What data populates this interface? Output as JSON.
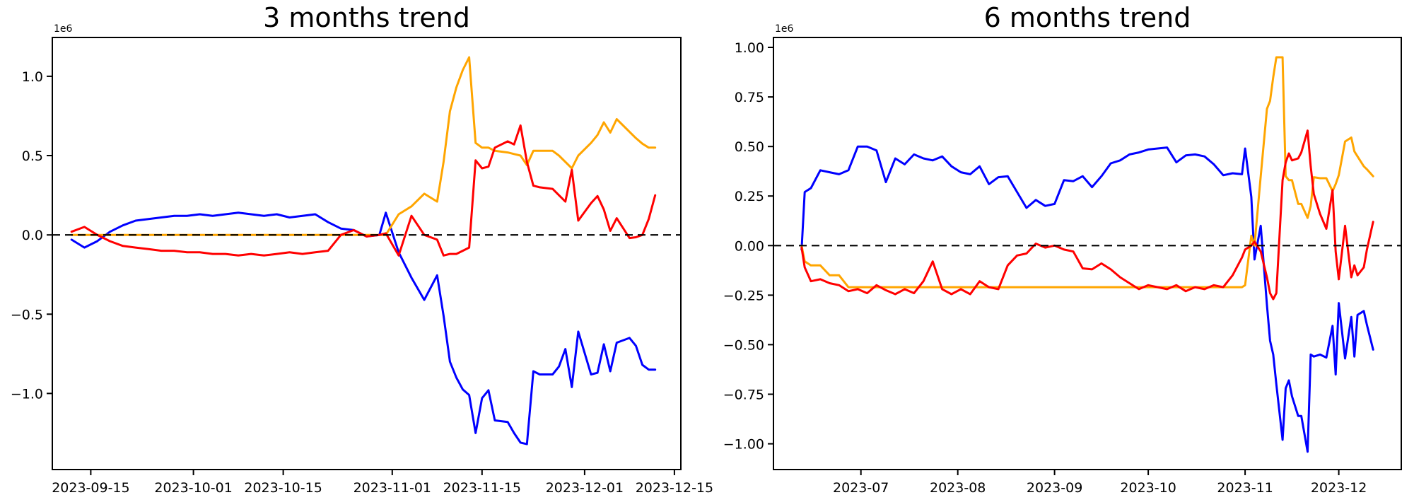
{
  "figure": {
    "background": "#ffffff",
    "axis_color": "#000000"
  },
  "chart_data": [
    {
      "type": "line",
      "title": "3 months trend",
      "offset_label": "1e6",
      "legend": "none",
      "grid": false,
      "zero_line": {
        "value": 0,
        "style": "dashed",
        "color": "#000000"
      },
      "xlim": [
        "2023-09-09",
        "2023-12-16"
      ],
      "ylim": [
        -1.48,
        1.245
      ],
      "y_unit": 1000000,
      "yticks": {
        "values": [
          1.0,
          0.5,
          0.0,
          -0.5,
          -1.0
        ],
        "labels": [
          "1.0",
          "0.5",
          "0.0",
          "−0.5",
          "−1.0"
        ]
      },
      "xticks": {
        "dates": [
          "2023-09-15",
          "2023-10-01",
          "2023-10-15",
          "2023-11-01",
          "2023-11-15",
          "2023-12-01",
          "2023-12-15"
        ],
        "labels": [
          "2023-09-15",
          "2023-10-01",
          "2023-10-15",
          "2023-11-01",
          "2023-11-15",
          "2023-12-01",
          "2023-12-15"
        ]
      },
      "x_dates": [
        "2023-09-12",
        "2023-09-14",
        "2023-09-16",
        "2023-09-18",
        "2023-09-20",
        "2023-09-22",
        "2023-09-24",
        "2023-09-26",
        "2023-09-28",
        "2023-09-30",
        "2023-10-02",
        "2023-10-04",
        "2023-10-06",
        "2023-10-08",
        "2023-10-10",
        "2023-10-12",
        "2023-10-14",
        "2023-10-16",
        "2023-10-18",
        "2023-10-20",
        "2023-10-22",
        "2023-10-24",
        "2023-10-26",
        "2023-10-28",
        "2023-10-30",
        "2023-10-31",
        "2023-11-02",
        "2023-11-04",
        "2023-11-06",
        "2023-11-08",
        "2023-11-09",
        "2023-11-10",
        "2023-11-11",
        "2023-11-12",
        "2023-11-13",
        "2023-11-14",
        "2023-11-15",
        "2023-11-16",
        "2023-11-17",
        "2023-11-19",
        "2023-11-20",
        "2023-11-21",
        "2023-11-22",
        "2023-11-23",
        "2023-11-24",
        "2023-11-26",
        "2023-11-27",
        "2023-11-28",
        "2023-11-29",
        "2023-11-30",
        "2023-12-02",
        "2023-12-03",
        "2023-12-04",
        "2023-12-05",
        "2023-12-06",
        "2023-12-08",
        "2023-12-09",
        "2023-12-10",
        "2023-12-11",
        "2023-12-12"
      ],
      "series": [
        {
          "name": "blue",
          "color": "#0000ff",
          "values": [
            -0.03,
            -0.08,
            -0.04,
            0.02,
            0.06,
            0.09,
            0.1,
            0.11,
            0.12,
            0.12,
            0.13,
            0.12,
            0.13,
            0.14,
            0.13,
            0.12,
            0.13,
            0.11,
            0.12,
            0.13,
            0.08,
            0.04,
            0.03,
            -0.01,
            0.0,
            0.14,
            -0.11,
            -0.27,
            -0.41,
            -0.255,
            -0.51,
            -0.8,
            -0.9,
            -0.975,
            -1.01,
            -1.25,
            -1.03,
            -0.98,
            -1.17,
            -1.18,
            -1.25,
            -1.31,
            -1.32,
            -0.86,
            -0.88,
            -0.88,
            -0.83,
            -0.72,
            -0.96,
            -0.61,
            -0.88,
            -0.87,
            -0.69,
            -0.86,
            -0.68,
            -0.65,
            -0.7,
            -0.82,
            -0.85,
            -0.85
          ]
        },
        {
          "name": "red",
          "color": "#ff0000",
          "values": [
            0.02,
            0.05,
            0.0,
            -0.04,
            -0.07,
            -0.08,
            -0.09,
            -0.1,
            -0.1,
            -0.11,
            -0.11,
            -0.12,
            -0.12,
            -0.13,
            -0.12,
            -0.13,
            -0.12,
            -0.11,
            -0.12,
            -0.11,
            -0.1,
            0.0,
            0.03,
            -0.01,
            0.0,
            0.01,
            -0.13,
            0.12,
            0.0,
            -0.03,
            -0.13,
            -0.12,
            -0.12,
            -0.1,
            -0.08,
            0.47,
            0.42,
            0.43,
            0.55,
            0.59,
            0.57,
            0.69,
            0.46,
            0.31,
            0.3,
            0.29,
            0.25,
            0.21,
            0.41,
            0.09,
            0.2,
            0.245,
            0.16,
            0.025,
            0.105,
            -0.02,
            -0.015,
            0.0,
            0.1,
            0.25
          ]
        },
        {
          "name": "orange",
          "color": "#ffa500",
          "values": [
            0.0,
            0.0,
            0.0,
            0.0,
            0.0,
            0.0,
            0.0,
            0.0,
            0.0,
            0.0,
            0.0,
            0.0,
            0.0,
            0.0,
            0.0,
            0.0,
            0.0,
            0.0,
            0.0,
            0.0,
            0.0,
            0.0,
            0.0,
            0.0,
            0.0,
            0.0,
            0.13,
            0.18,
            0.26,
            0.21,
            0.46,
            0.78,
            0.93,
            1.04,
            1.12,
            0.58,
            0.55,
            0.55,
            0.53,
            0.52,
            0.51,
            0.5,
            0.44,
            0.53,
            0.53,
            0.53,
            0.5,
            0.46,
            0.42,
            0.5,
            0.58,
            0.63,
            0.71,
            0.645,
            0.73,
            0.65,
            0.61,
            0.575,
            0.55,
            0.55
          ]
        }
      ]
    },
    {
      "type": "line",
      "title": "6 months trend",
      "offset_label": "1e6",
      "legend": "none",
      "grid": false,
      "zero_line": {
        "value": 0,
        "style": "dashed",
        "color": "#000000"
      },
      "xlim": [
        "2023-06-03",
        "2023-12-21"
      ],
      "ylim": [
        -1.13,
        1.05
      ],
      "y_unit": 1000000,
      "yticks": {
        "values": [
          1.0,
          0.75,
          0.5,
          0.25,
          0.0,
          -0.25,
          -0.5,
          -0.75,
          -1.0
        ],
        "labels": [
          "1.00",
          "0.75",
          "0.50",
          "0.25",
          "0.00",
          "−0.25",
          "−0.50",
          "−0.75",
          "−1.00"
        ]
      },
      "xticks": {
        "dates": [
          "2023-07-01",
          "2023-08-01",
          "2023-09-01",
          "2023-10-01",
          "2023-11-01",
          "2023-12-01"
        ],
        "labels": [
          "2023-07",
          "2023-08",
          "2023-09",
          "2023-10",
          "2023-11",
          "2023-12"
        ]
      },
      "x_dates": [
        "2023-06-12",
        "2023-06-13",
        "2023-06-15",
        "2023-06-18",
        "2023-06-21",
        "2023-06-24",
        "2023-06-27",
        "2023-06-30",
        "2023-07-03",
        "2023-07-06",
        "2023-07-09",
        "2023-07-12",
        "2023-07-15",
        "2023-07-18",
        "2023-07-21",
        "2023-07-24",
        "2023-07-27",
        "2023-07-30",
        "2023-08-02",
        "2023-08-05",
        "2023-08-08",
        "2023-08-11",
        "2023-08-14",
        "2023-08-17",
        "2023-08-20",
        "2023-08-23",
        "2023-08-26",
        "2023-08-29",
        "2023-09-01",
        "2023-09-04",
        "2023-09-07",
        "2023-09-10",
        "2023-09-13",
        "2023-09-16",
        "2023-09-19",
        "2023-09-22",
        "2023-09-25",
        "2023-09-28",
        "2023-10-01",
        "2023-10-04",
        "2023-10-07",
        "2023-10-10",
        "2023-10-13",
        "2023-10-16",
        "2023-10-19",
        "2023-10-22",
        "2023-10-25",
        "2023-10-28",
        "2023-10-31",
        "2023-11-01",
        "2023-11-03",
        "2023-11-04",
        "2023-11-06",
        "2023-11-08",
        "2023-11-09",
        "2023-11-10",
        "2023-11-11",
        "2023-11-13",
        "2023-11-14",
        "2023-11-15",
        "2023-11-16",
        "2023-11-18",
        "2023-11-19",
        "2023-11-21",
        "2023-11-22",
        "2023-11-23",
        "2023-11-25",
        "2023-11-27",
        "2023-11-29",
        "2023-11-30",
        "2023-12-01",
        "2023-12-03",
        "2023-12-05",
        "2023-12-06",
        "2023-12-07",
        "2023-12-09",
        "2023-12-10",
        "2023-12-12"
      ],
      "series": [
        {
          "name": "blue",
          "color": "#0000ff",
          "values": [
            -0.02,
            0.27,
            0.29,
            0.38,
            0.37,
            0.36,
            0.38,
            0.5,
            0.5,
            0.48,
            0.32,
            0.44,
            0.41,
            0.46,
            0.44,
            0.43,
            0.45,
            0.4,
            0.37,
            0.36,
            0.4,
            0.31,
            0.345,
            0.35,
            0.27,
            0.19,
            0.23,
            0.2,
            0.21,
            0.33,
            0.325,
            0.35,
            0.295,
            0.35,
            0.415,
            0.43,
            0.46,
            0.47,
            0.485,
            0.49,
            0.495,
            0.42,
            0.455,
            0.46,
            0.45,
            0.41,
            0.355,
            0.365,
            0.36,
            0.49,
            0.245,
            -0.07,
            0.1,
            -0.3,
            -0.48,
            -0.55,
            -0.7,
            -0.98,
            -0.72,
            -0.68,
            -0.76,
            -0.86,
            -0.86,
            -1.04,
            -0.55,
            -0.56,
            -0.55,
            -0.565,
            -0.405,
            -0.65,
            -0.29,
            -0.57,
            -0.36,
            -0.56,
            -0.35,
            -0.33,
            -0.4,
            -0.525
          ]
        },
        {
          "name": "red",
          "color": "#ff0000",
          "values": [
            -0.01,
            -0.11,
            -0.18,
            -0.17,
            -0.19,
            -0.2,
            -0.23,
            -0.22,
            -0.24,
            -0.2,
            -0.225,
            -0.245,
            -0.22,
            -0.24,
            -0.18,
            -0.08,
            -0.22,
            -0.245,
            -0.22,
            -0.245,
            -0.18,
            -0.21,
            -0.22,
            -0.1,
            -0.05,
            -0.04,
            0.01,
            -0.01,
            0.0,
            -0.02,
            -0.03,
            -0.115,
            -0.12,
            -0.09,
            -0.12,
            -0.16,
            -0.19,
            -0.22,
            -0.2,
            -0.21,
            -0.22,
            -0.2,
            -0.23,
            -0.21,
            -0.22,
            -0.2,
            -0.21,
            -0.15,
            -0.06,
            -0.02,
            0.0,
            0.02,
            -0.03,
            -0.16,
            -0.24,
            -0.27,
            -0.24,
            0.33,
            0.42,
            0.465,
            0.43,
            0.44,
            0.47,
            0.58,
            0.4,
            0.26,
            0.16,
            0.085,
            0.28,
            -0.03,
            -0.17,
            0.1,
            -0.16,
            -0.1,
            -0.15,
            -0.11,
            -0.02,
            0.12
          ]
        },
        {
          "name": "orange",
          "color": "#ffa500",
          "values": [
            0.0,
            -0.08,
            -0.1,
            -0.1,
            -0.15,
            -0.15,
            -0.21,
            -0.21,
            -0.21,
            -0.21,
            -0.21,
            -0.21,
            -0.21,
            -0.21,
            -0.21,
            -0.21,
            -0.21,
            -0.21,
            -0.21,
            -0.21,
            -0.21,
            -0.21,
            -0.21,
            -0.21,
            -0.21,
            -0.21,
            -0.21,
            -0.21,
            -0.21,
            -0.21,
            -0.21,
            -0.21,
            -0.21,
            -0.21,
            -0.21,
            -0.21,
            -0.21,
            -0.21,
            -0.21,
            -0.21,
            -0.21,
            -0.21,
            -0.21,
            -0.21,
            -0.21,
            -0.21,
            -0.21,
            -0.21,
            -0.21,
            -0.2,
            0.05,
            0.0,
            0.35,
            0.69,
            0.73,
            0.85,
            0.95,
            0.95,
            0.35,
            0.33,
            0.33,
            0.21,
            0.21,
            0.14,
            0.2,
            0.345,
            0.34,
            0.34,
            0.275,
            0.31,
            0.355,
            0.525,
            0.545,
            0.475,
            0.45,
            0.4,
            0.385,
            0.35
          ]
        }
      ]
    }
  ]
}
